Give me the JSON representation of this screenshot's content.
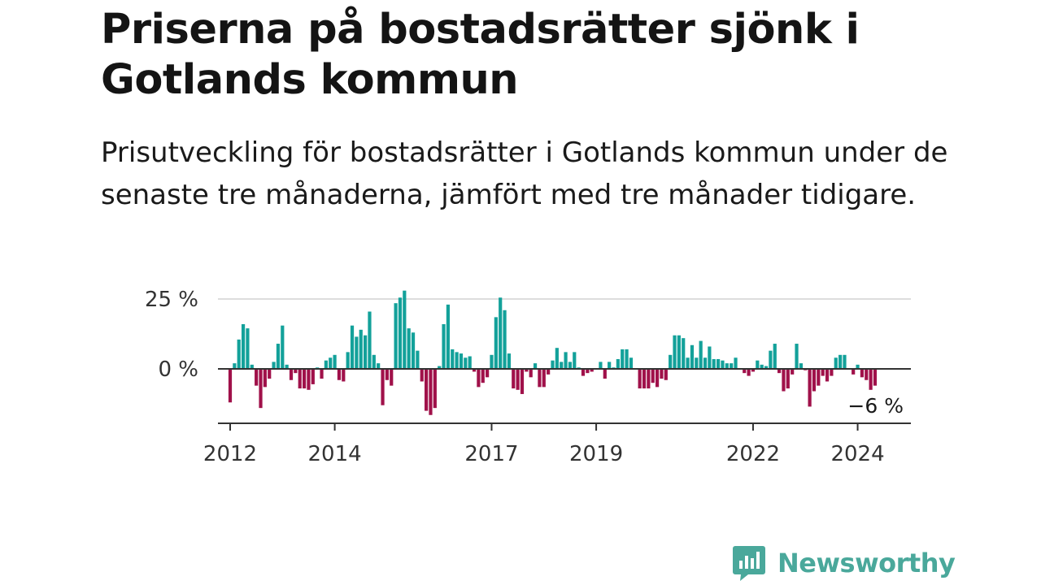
{
  "header": {
    "title": "Priserna på bostadsrätter sjönk i Gotlands kommun",
    "subtitle": "Prisutveckling för bostadsrätter i Gotlands kommun under de senaste tre månaderna, jämfört med tre månader tidigare."
  },
  "brand": {
    "name": "Newsworthy",
    "color": "#4aa89b",
    "icon": "newsworthy-chart-bubble-icon"
  },
  "colors": {
    "positive": "#13a19a",
    "negative": "#a0114a",
    "grid": "#dddddd",
    "axis": "#333333"
  },
  "chart_data": {
    "type": "bar",
    "start": "2012-01",
    "frequency": "monthly",
    "ylim": [
      -20,
      28
    ],
    "y_ticks": [
      {
        "value": 0,
        "label": "0 %"
      },
      {
        "value": 25,
        "label": "25 %"
      }
    ],
    "x_ticks": [
      "2012",
      "2014",
      "2017",
      "2019",
      "2022",
      "2024"
    ],
    "last_label": "−6 %",
    "series": [
      {
        "values": [
          -12,
          2,
          10.5,
          16,
          14.5,
          1.5,
          -6,
          -14,
          -6.5,
          -3.5,
          2.5,
          9,
          15.5,
          1.5,
          -4,
          -1.5,
          -7,
          -7,
          -7.5,
          -5.5,
          0.5,
          -3.5,
          3,
          4,
          5,
          -4,
          -4.5,
          6,
          15.5,
          11.5,
          14,
          12,
          20.5,
          5,
          2,
          -13,
          -4,
          -6,
          23.5,
          25.5,
          28,
          14.5,
          13,
          6.5,
          -4.5,
          -15,
          -16.5,
          -14,
          1,
          16,
          23,
          7,
          6,
          5.5,
          4,
          4.5,
          -1,
          -6.5,
          -5,
          -3,
          5,
          18.5,
          25.5,
          21,
          5.5,
          -7,
          -7.5,
          -9,
          -1,
          -3,
          2,
          -6.5,
          -6.5,
          -2,
          3,
          7.5,
          2.5,
          6,
          2.5,
          6,
          0.5,
          -2.5,
          -1.5,
          -1,
          0,
          2.5,
          -3.5,
          2.5,
          0.5,
          3.5,
          7,
          7,
          4,
          0,
          -7,
          -7,
          -7,
          -5,
          -6.5,
          -3.5,
          -4,
          5,
          12,
          12,
          11,
          4,
          8.5,
          4,
          10,
          4,
          8,
          3.5,
          3.5,
          3,
          2,
          2,
          4,
          0,
          -1.5,
          -2.5,
          -1,
          3,
          1.5,
          1,
          6.5,
          9,
          -1.5,
          -8,
          -7,
          -2,
          9,
          2,
          -0.5,
          -13.5,
          -8,
          -6,
          -2.5,
          -4.5,
          -2.5,
          4,
          5,
          5,
          0,
          -2,
          1.5,
          -3,
          -4,
          -7.5,
          -6
        ]
      }
    ]
  }
}
